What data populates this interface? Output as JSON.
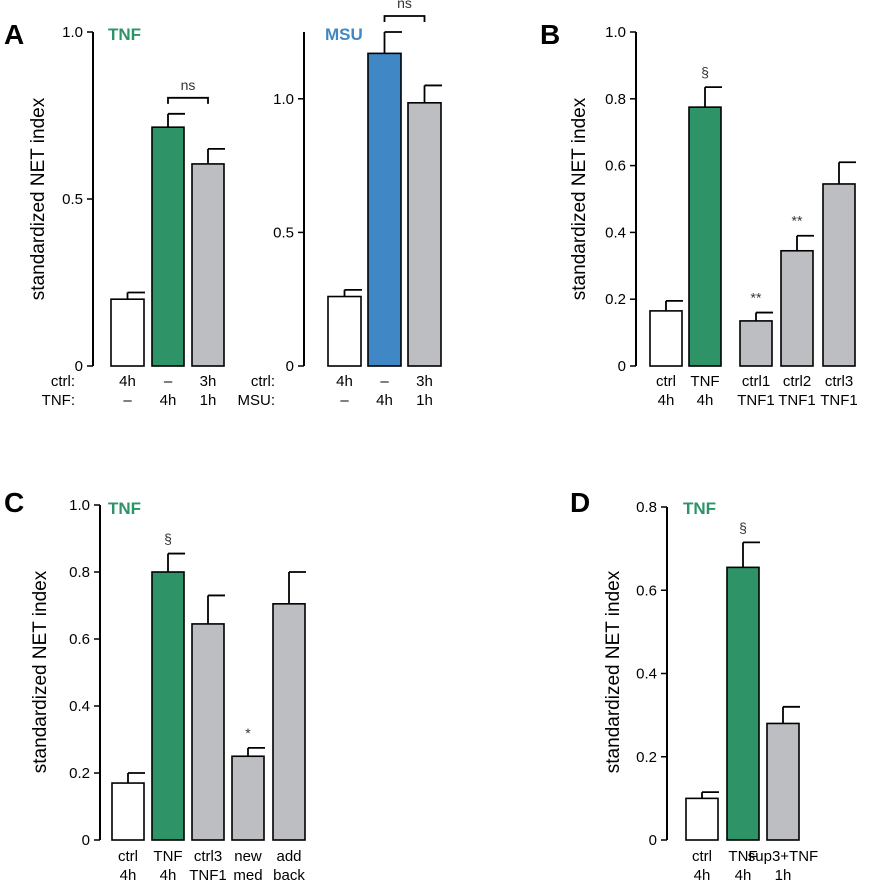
{
  "chart_data": [
    {
      "id": "A1",
      "type": "bar",
      "panel_letter": "A",
      "title": "TNF",
      "title_color": "#2e9468",
      "ylabel": "standardized NET index",
      "ylim": [
        0,
        1.0
      ],
      "yticks": [
        "0",
        "0.5",
        "1.0"
      ],
      "ytick_values": [
        0,
        0.5,
        1.0
      ],
      "values": [
        0.2,
        0.715,
        0.605
      ],
      "errors": [
        0.02,
        0.04,
        0.045
      ],
      "colors": [
        "#ffffff",
        "#2e9468",
        "#bdbec2"
      ],
      "row_labels": [
        "ctrl:",
        "TNF:"
      ],
      "category_lines": [
        [
          "4h",
          "–"
        ],
        [
          "–",
          "4h"
        ],
        [
          "3h",
          "1h"
        ]
      ],
      "annotations": [
        {
          "text": "ns",
          "bracket": [
            1,
            2
          ]
        }
      ]
    },
    {
      "id": "A2",
      "type": "bar",
      "panel_letter": "",
      "title": "MSU",
      "title_color": "#3f88c5",
      "ylabel": "",
      "ylim": [
        0,
        1.25
      ],
      "yticks": [
        "0",
        "0.5",
        "1.0"
      ],
      "ytick_values": [
        0,
        0.5,
        1.0
      ],
      "values": [
        0.26,
        1.17,
        0.985
      ],
      "errors": [
        0.025,
        0.08,
        0.065
      ],
      "colors": [
        "#ffffff",
        "#3f88c5",
        "#bdbec2"
      ],
      "row_labels": [
        "ctrl:",
        "MSU:"
      ],
      "category_lines": [
        [
          "4h",
          "–"
        ],
        [
          "–",
          "4h"
        ],
        [
          "3h",
          "1h"
        ]
      ],
      "annotations": [
        {
          "text": "ns",
          "bracket": [
            1,
            2
          ]
        }
      ]
    },
    {
      "id": "B",
      "type": "bar",
      "panel_letter": "B",
      "title": "",
      "title_color": "#000000",
      "ylabel": "standardized NET index",
      "ylim": [
        0,
        1.0
      ],
      "yticks": [
        "0",
        "0.2",
        "0.4",
        "0.6",
        "0.8",
        "1.0"
      ],
      "ytick_values": [
        0,
        0.2,
        0.4,
        0.6,
        0.8,
        1.0
      ],
      "values": [
        0.165,
        0.775,
        0.135,
        0.345,
        0.545
      ],
      "errors": [
        0.03,
        0.06,
        0.025,
        0.045,
        0.065
      ],
      "colors": [
        "#ffffff",
        "#2e9468",
        "#bdbec2",
        "#bdbec2",
        "#bdbec2"
      ],
      "row_labels": [],
      "category_lines": [
        [
          "ctrl",
          "4h"
        ],
        [
          "TNF",
          "4h"
        ],
        [
          "ctrl1",
          "TNF1"
        ],
        [
          "ctrl2",
          "TNF1"
        ],
        [
          "ctrl3",
          "TNF1"
        ]
      ],
      "annotations": [
        {
          "text": "§",
          "bar": 1
        },
        {
          "text": "**",
          "bar": 2
        },
        {
          "text": "**",
          "bar": 3
        }
      ]
    },
    {
      "id": "C",
      "type": "bar",
      "panel_letter": "C",
      "title": "TNF",
      "title_color": "#2e9468",
      "ylabel": "standardized NET index",
      "ylim": [
        0,
        1.0
      ],
      "yticks": [
        "0",
        "0.2",
        "0.4",
        "0.6",
        "0.8",
        "1.0"
      ],
      "ytick_values": [
        0,
        0.2,
        0.4,
        0.6,
        0.8,
        1.0
      ],
      "values": [
        0.17,
        0.8,
        0.645,
        0.25,
        0.705
      ],
      "errors": [
        0.03,
        0.055,
        0.085,
        0.025,
        0.095
      ],
      "colors": [
        "#ffffff",
        "#2e9468",
        "#bdbec2",
        "#bdbec2",
        "#bdbec2"
      ],
      "row_labels": [],
      "category_lines": [
        [
          "ctrl",
          "4h"
        ],
        [
          "TNF",
          "4h"
        ],
        [
          "ctrl3",
          "TNF1"
        ],
        [
          "new",
          "med"
        ],
        [
          "add",
          "back"
        ]
      ],
      "annotations": [
        {
          "text": "§",
          "bar": 1
        },
        {
          "text": "*",
          "bar": 3
        }
      ]
    },
    {
      "id": "D",
      "type": "bar",
      "panel_letter": "D",
      "title": "TNF",
      "title_color": "#2e9468",
      "ylabel": "standardized NET index",
      "ylim": [
        0,
        0.8
      ],
      "yticks": [
        "0",
        "0.2",
        "0.4",
        "0.6",
        "0.8"
      ],
      "ytick_values": [
        0,
        0.2,
        0.4,
        0.6,
        0.8
      ],
      "values": [
        0.1,
        0.655,
        0.28
      ],
      "errors": [
        0.015,
        0.06,
        0.04
      ],
      "colors": [
        "#ffffff",
        "#2e9468",
        "#bdbec2"
      ],
      "row_labels": [],
      "category_lines": [
        [
          "ctrl",
          "4h"
        ],
        [
          "TNF",
          "4h"
        ],
        [
          "sup3+TNF",
          "1h"
        ]
      ],
      "annotations": [
        {
          "text": "§",
          "bar": 1
        }
      ]
    }
  ]
}
